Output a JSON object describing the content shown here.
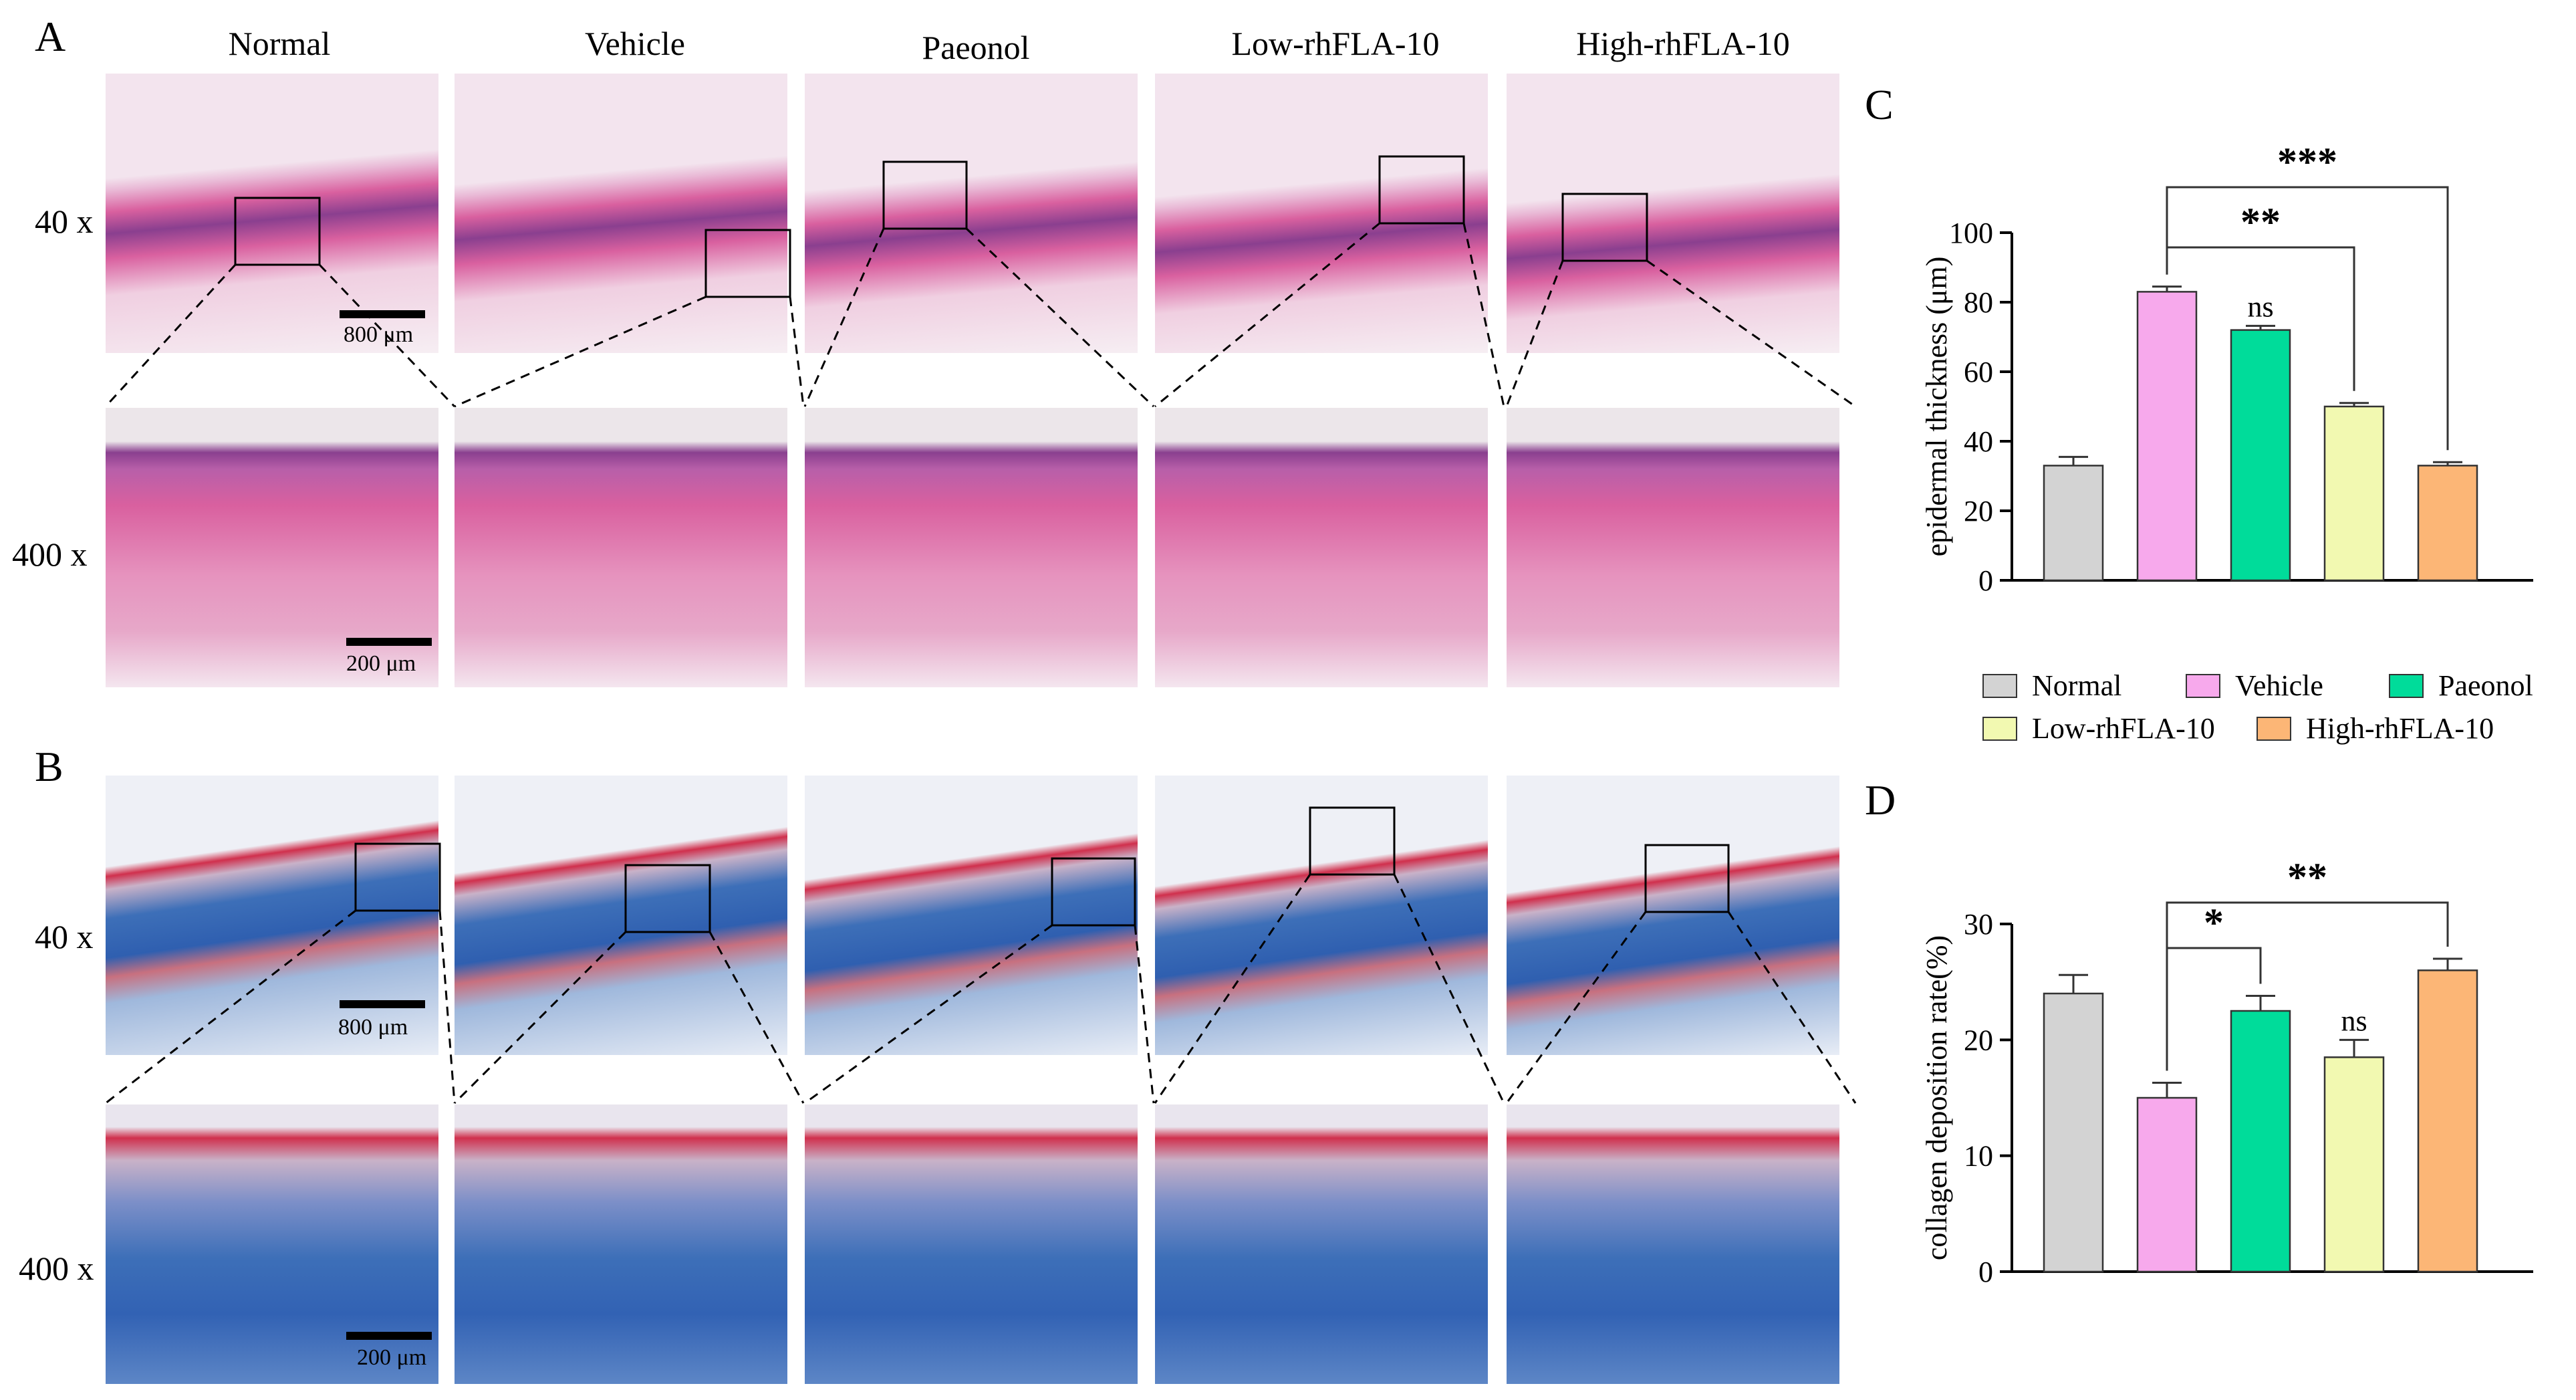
{
  "panels": {
    "A": "A",
    "B": "B",
    "C": "C",
    "D": "D"
  },
  "columns": [
    "Normal",
    "Vehicle",
    "Paeonol",
    "Low-rhFLA-10",
    "High-rhFLA-10"
  ],
  "magnifications": {
    "low": "40 x",
    "high": "400 x"
  },
  "scalebars": {
    "low": "800 μm",
    "high": "200 μm"
  },
  "stain_colors": {
    "he_bg": "#f3e4ee",
    "he_tissue": "#d9609f",
    "he_dark": "#8a3f8f",
    "mt_bg": "#eef0f6",
    "mt_tissue": "#3d6fb8",
    "mt_red": "#d0304d",
    "mt_pale": "#c9b2c8"
  },
  "chart_data": [
    {
      "type": "bar",
      "panel": "C",
      "categories": [
        "Normal",
        "Vehicle",
        "Paeonol",
        "Low-rhFLA-10",
        "High-rhFLA-10"
      ],
      "values": [
        33,
        83,
        72,
        50,
        33
      ],
      "errors": [
        2.5,
        1.5,
        1.2,
        1.0,
        1.0
      ],
      "colors": [
        "#d3d3d3",
        "#f7a9ec",
        "#00dc9a",
        "#f2f9b1",
        "#fcb676"
      ],
      "ylabel": "epidermal thickness (μm)",
      "ylim": [
        0,
        100
      ],
      "yticks": [
        0,
        20,
        40,
        60,
        80,
        100
      ],
      "annotations": [
        {
          "label": "ns",
          "over": 2
        },
        {
          "label": "**",
          "from": 1,
          "to": 3
        },
        {
          "label": "***",
          "from": 1,
          "to": 4
        }
      ]
    },
    {
      "type": "bar",
      "panel": "D",
      "categories": [
        "Normal",
        "Vehicle",
        "Paeonol",
        "Low-rhFLA-10",
        "High-rhFLA-10"
      ],
      "values": [
        24,
        15,
        22.5,
        18.5,
        26
      ],
      "errors": [
        1.6,
        1.3,
        1.3,
        1.5,
        1.0
      ],
      "colors": [
        "#d3d3d3",
        "#f7a9ec",
        "#00dc9a",
        "#f2f9b1",
        "#fcb676"
      ],
      "ylabel": "collagen deposition rate(%)",
      "ylim": [
        0,
        30
      ],
      "yticks": [
        0,
        10,
        20,
        30
      ],
      "annotations": [
        {
          "label": "ns",
          "over": 3
        },
        {
          "label": "*",
          "from": 1,
          "to": 2
        },
        {
          "label": "**",
          "from": 1,
          "to": 4
        }
      ]
    }
  ],
  "legend": [
    {
      "label": "Normal",
      "color": "#d3d3d3"
    },
    {
      "label": "Vehicle",
      "color": "#f7a9ec"
    },
    {
      "label": "Paeonol",
      "color": "#00dc9a"
    },
    {
      "label": "Low-rhFLA-10",
      "color": "#f2f9b1"
    },
    {
      "label": "High-rhFLA-10",
      "color": "#fcb676"
    }
  ]
}
